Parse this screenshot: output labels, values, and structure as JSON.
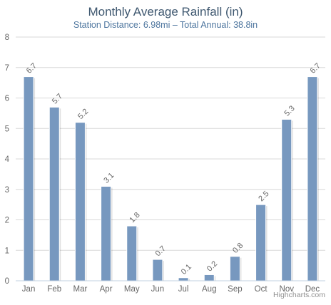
{
  "chart_data": {
    "type": "bar",
    "title": "Monthly Average Rainfall (in)",
    "subtitle": "Station Distance: 6.98mi – Total Annual: 38.8in",
    "categories": [
      "Jan",
      "Feb",
      "Mar",
      "Apr",
      "May",
      "Jun",
      "Jul",
      "Aug",
      "Sep",
      "Oct",
      "Nov",
      "Dec"
    ],
    "values": [
      6.7,
      5.7,
      5.2,
      3.1,
      1.8,
      0.7,
      0.1,
      0.2,
      0.8,
      2.5,
      5.3,
      6.7
    ],
    "data_labels": [
      "6.7",
      "5.7",
      "5.2",
      "3.1",
      "1.8",
      "0.7",
      "0.1",
      "0.2",
      "0.8",
      "2.5",
      "5.3",
      "6.7"
    ],
    "ylim": [
      0,
      8
    ],
    "yticks": [
      0,
      1,
      2,
      3,
      4,
      5,
      6,
      7,
      8
    ],
    "xlabel": "",
    "ylabel": "",
    "grid": true,
    "legend": "none",
    "bar_color": "#7798bf",
    "credits": "Highcharts.com"
  }
}
